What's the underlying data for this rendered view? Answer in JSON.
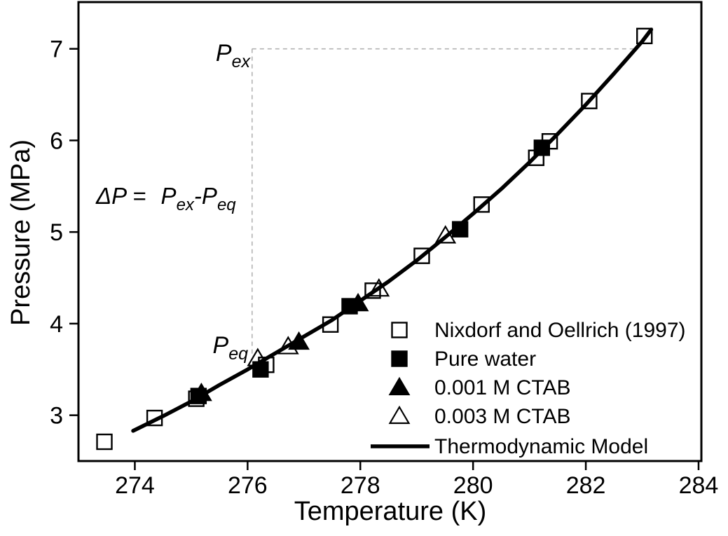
{
  "chart_data": {
    "type": "scatter",
    "title": "",
    "xlabel": "Temperature (K)",
    "ylabel": "Pressure (MPa)",
    "xlim": [
      273,
      284.05
    ],
    "ylim": [
      2.5,
      7.51
    ],
    "xticks": [
      274,
      276,
      278,
      280,
      282,
      284
    ],
    "yticks": [
      3,
      4,
      5,
      6,
      7
    ],
    "grid": false,
    "legend_position": "inside lower right",
    "series": [
      {
        "name": "Nixdorf and Oellrich (1997)",
        "marker": "open-square",
        "x": [
          273.46,
          274.35,
          275.09,
          276.33,
          277.47,
          278.22,
          279.09,
          280.15,
          281.12,
          281.36,
          282.06,
          283.04
        ],
        "y": [
          2.71,
          2.97,
          3.18,
          3.55,
          3.99,
          4.36,
          4.74,
          5.3,
          5.81,
          5.99,
          6.43,
          7.14
        ]
      },
      {
        "name": "Pure water",
        "marker": "filled-square",
        "x": [
          275.13,
          276.23,
          277.81,
          279.77,
          281.22
        ],
        "y": [
          3.21,
          3.5,
          4.19,
          5.03,
          5.92
        ]
      },
      {
        "name": "0.001 M CTAB",
        "marker": "filled-triangle",
        "x": [
          275.18,
          276.91,
          277.96
        ],
        "y": [
          3.24,
          3.8,
          4.22
        ]
      },
      {
        "name": "0.003 M CTAB",
        "marker": "open-triangle",
        "x": [
          276.18,
          276.72,
          278.33,
          279.51
        ],
        "y": [
          3.62,
          3.75,
          4.38,
          4.96
        ]
      },
      {
        "name": "Thermodynamic Model",
        "marker": "line",
        "x": [
          273.97,
          274.5,
          275.0,
          275.5,
          276.0,
          276.5,
          277.0,
          277.5,
          278.0,
          278.5,
          279.0,
          279.5,
          280.0,
          280.5,
          281.0,
          281.5,
          282.0,
          282.5,
          283.0,
          283.16
        ],
        "y": [
          2.83,
          2.99,
          3.15,
          3.33,
          3.5,
          3.68,
          3.86,
          4.04,
          4.25,
          4.46,
          4.69,
          4.94,
          5.2,
          5.47,
          5.76,
          6.07,
          6.39,
          6.73,
          7.08,
          7.21
        ]
      }
    ],
    "annotations": {
      "delta": {
        "lead": "ΔP = ",
        "p1": "P",
        "sub1": "ex",
        "minus": "-",
        "p2": "P",
        "sub2": "eq"
      },
      "p_ex": {
        "main": "P",
        "sub": "ex"
      },
      "p_eq": {
        "main": "P",
        "sub": "eq"
      },
      "dashed_lines": {
        "vertical": {
          "t": 276.08,
          "p_start": 7.0,
          "p_end": 3.66
        },
        "horizontal": {
          "p": 7.0,
          "t_start": 276.08,
          "t_end": 282.92
        }
      }
    },
    "colors": {
      "foreground": "#000000",
      "background": "#ffffff",
      "dashed": "#b3b3b3"
    }
  }
}
